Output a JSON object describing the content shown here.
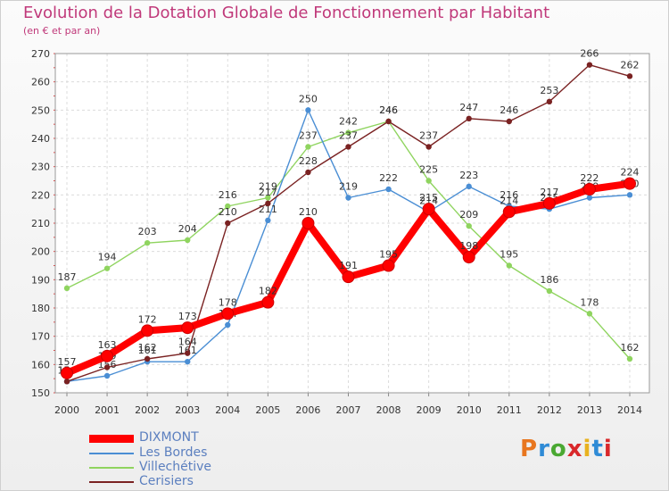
{
  "title": "Evolution de la Dotation Globale de Fonctionnement par Habitant",
  "subtitle": "(en € et par an)",
  "logo": {
    "text": "Proxiti",
    "colors": [
      "#e8761f",
      "#2f8bd6",
      "#4aa832",
      "#d9282b",
      "#e8b21f",
      "#2f8bd6",
      "#d9282b"
    ]
  },
  "chart_data": {
    "type": "line",
    "title": "Evolution de la Dotation Globale de Fonctionnement par Habitant",
    "subtitle": "(en € et par an)",
    "xlabel": "",
    "ylabel": "",
    "ylim": [
      150,
      270
    ],
    "yticks": [
      150,
      160,
      170,
      180,
      190,
      200,
      210,
      220,
      230,
      240,
      250,
      260,
      270
    ],
    "grid": true,
    "legend_position": "bottom-left",
    "x": [
      "2000",
      "2001",
      "2002",
      "2003",
      "2004",
      "2005",
      "2006",
      "2007",
      "2008",
      "2009",
      "2010",
      "2011",
      "2012",
      "2013",
      "2014"
    ],
    "series": [
      {
        "name": "Villechétive",
        "color": "#8fd45f",
        "values": [
          187,
          194,
          203,
          204,
          216,
          219,
          237,
          242,
          246,
          225,
          209,
          195,
          186,
          178,
          162
        ],
        "labels": [
          "187",
          "194",
          "203",
          "204",
          "216",
          "219",
          "237",
          "242",
          "246",
          "225",
          "209",
          "195",
          "186",
          "178",
          "162"
        ]
      },
      {
        "name": "Les Bordes",
        "color": "#4a8ed4",
        "values": [
          154,
          156,
          161,
          161,
          174,
          211,
          250,
          219,
          222,
          214,
          223,
          216,
          215,
          219,
          220
        ],
        "labels": [
          "154",
          "156",
          "161",
          "161",
          "174",
          "211",
          "250",
          "219",
          "222",
          "214",
          "223",
          "216",
          "215",
          "219",
          "220"
        ]
      },
      {
        "name": "Cerisiers",
        "color": "#7a2222",
        "values": [
          154,
          159,
          162,
          164,
          210,
          217,
          228,
          237,
          246,
          237,
          247,
          246,
          253,
          266,
          262
        ],
        "labels": [
          "154",
          "159",
          "162",
          "164",
          "210",
          "217",
          "228",
          "237",
          "246",
          "237",
          "247",
          "246",
          "253",
          "266",
          "262"
        ]
      },
      {
        "name": "DIXMONT",
        "color": "#ff0000",
        "values": [
          157,
          163,
          172,
          173,
          178,
          182,
          210,
          191,
          195,
          215,
          198,
          214,
          217,
          222,
          224
        ],
        "labels": [
          "157",
          "163",
          "172",
          "173",
          "178",
          "182",
          "210",
          "191",
          "195",
          "215",
          "198",
          "214",
          "217",
          "222",
          "224"
        ]
      }
    ],
    "legend": [
      "DIXMONT",
      "Les Bordes",
      "Villechétive",
      "Cerisiers"
    ]
  }
}
